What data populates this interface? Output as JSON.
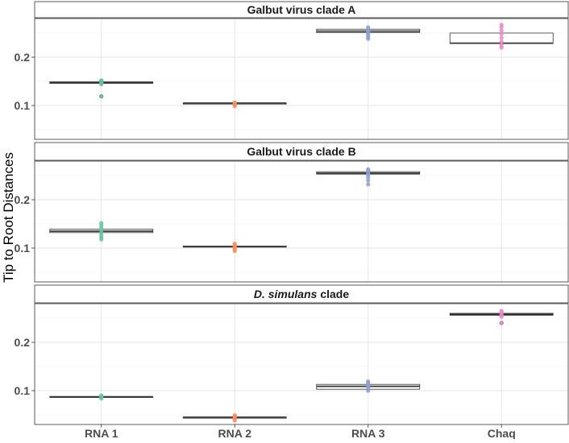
{
  "figure": {
    "ylabel": "Tip to Root Distances"
  },
  "chart_data": {
    "type": "box",
    "ylabel": "Tip to Root Distances",
    "xlabel": "",
    "categories": [
      "RNA 1",
      "RNA 2",
      "RNA 3",
      "Chaq"
    ],
    "ylim": [
      0.03,
      0.28
    ],
    "yticks": [
      0.1,
      0.2
    ],
    "yticklabels": [
      "0.1",
      "0.2"
    ],
    "grid": true,
    "colors": {
      "RNA 1": "#66c2a5",
      "RNA 2": "#fc8d62",
      "RNA 3": "#8da0cb",
      "Chaq": "#e78ac3"
    },
    "panels": [
      {
        "title_parts": [
          {
            "text": "Galbut virus clade A",
            "italic": false
          }
        ],
        "ylim": [
          0.03,
          0.28
        ],
        "boxes": [
          {
            "category": "RNA 1",
            "q1": 0.146,
            "median": 0.147,
            "q3": 0.149,
            "points": [
              0.144,
              0.146,
              0.148,
              0.15,
              0.151,
              0.152
            ],
            "outliers": [
              0.119
            ]
          },
          {
            "category": "RNA 2",
            "q1": 0.104,
            "median": 0.105,
            "q3": 0.105,
            "points": [
              0.099,
              0.101,
              0.103,
              0.105,
              0.106
            ],
            "outliers": []
          },
          {
            "category": "RNA 3",
            "q1": 0.251,
            "median": 0.254,
            "q3": 0.258,
            "points": [
              0.238,
              0.242,
              0.246,
              0.25,
              0.254,
              0.258,
              0.262
            ],
            "outliers": []
          },
          {
            "category": "Chaq",
            "q1": 0.229,
            "median": 0.229,
            "q3": 0.25,
            "points": [
              0.22,
              0.225,
              0.232,
              0.24,
              0.248,
              0.255,
              0.262,
              0.267
            ],
            "outliers": []
          }
        ]
      },
      {
        "title_parts": [
          {
            "text": "Galbut virus clade B",
            "italic": false
          }
        ],
        "ylim": [
          0.03,
          0.28
        ],
        "boxes": [
          {
            "category": "RNA 1",
            "q1": 0.132,
            "median": 0.135,
            "q3": 0.139,
            "points": [
              0.118,
              0.122,
              0.127,
              0.132,
              0.137,
              0.142,
              0.147,
              0.152
            ],
            "outliers": []
          },
          {
            "category": "RNA 2",
            "q1": 0.102,
            "median": 0.103,
            "q3": 0.104,
            "points": [
              0.094,
              0.097,
              0.1,
              0.103,
              0.106,
              0.109
            ],
            "outliers": []
          },
          {
            "category": "RNA 3",
            "q1": 0.253,
            "median": 0.255,
            "q3": 0.258,
            "points": [
              0.232,
              0.24,
              0.247,
              0.252,
              0.256,
              0.26,
              0.263
            ],
            "outliers": []
          },
          {
            "category": "Chaq",
            "q1": null,
            "median": null,
            "q3": null,
            "points": [],
            "outliers": []
          }
        ]
      },
      {
        "title_parts": [
          {
            "text": "D. simulans",
            "italic": true
          },
          {
            "text": " clade",
            "italic": false
          }
        ],
        "ylim": [
          0.03,
          0.28
        ],
        "boxes": [
          {
            "category": "RNA 1",
            "q1": 0.086,
            "median": 0.087,
            "q3": 0.088,
            "points": [
              0.084,
              0.086,
              0.088,
              0.09
            ],
            "outliers": []
          },
          {
            "category": "RNA 2",
            "q1": 0.044,
            "median": 0.045,
            "q3": 0.045,
            "points": [
              0.038,
              0.041,
              0.044,
              0.047,
              0.049
            ],
            "outliers": []
          },
          {
            "category": "RNA 3",
            "q1": 0.103,
            "median": 0.109,
            "q3": 0.113,
            "points": [
              0.1,
              0.103,
              0.107,
              0.11,
              0.113,
              0.116,
              0.119
            ],
            "outliers": []
          },
          {
            "category": "Chaq",
            "q1": 0.256,
            "median": 0.258,
            "q3": 0.26,
            "points": [
              0.253,
              0.256,
              0.259,
              0.262,
              0.265
            ],
            "outliers": [
              0.24
            ]
          }
        ]
      }
    ]
  }
}
